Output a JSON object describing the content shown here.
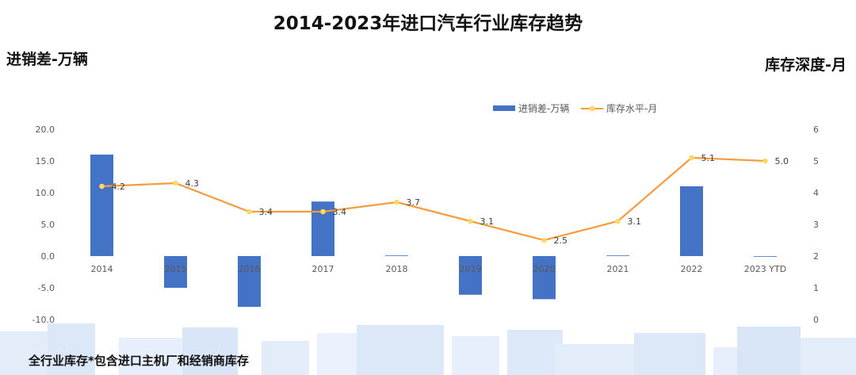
{
  "title": "2014-2023年进口汽车行业库存趋势",
  "left_axis_label": "进销差-万辆",
  "right_axis_label": "库存深度-月",
  "footnote": "全行业库存*包含进口主机厂和经销商库存",
  "colors": {
    "bar": "#4472C4",
    "line": "#F79B3D",
    "marker": "#FFD966",
    "axis_text": "#595959",
    "band": "#DCE8F8"
  },
  "chart_data": {
    "type": "bar",
    "categories": [
      "2014",
      "2015",
      "2016",
      "2017",
      "2018",
      "2019",
      "2020",
      "2021",
      "2022",
      "2023 YTD"
    ],
    "series": [
      {
        "name": "进销差-万辆",
        "type": "bar",
        "axis": "left",
        "values": [
          16.0,
          -5.0,
          -8.0,
          8.6,
          0.1,
          -6.1,
          -6.8,
          0.1,
          11.0,
          0.0
        ]
      },
      {
        "name": "库存水平-月",
        "type": "line",
        "axis": "right",
        "values": [
          4.2,
          4.3,
          3.4,
          3.4,
          3.7,
          3.1,
          2.5,
          3.1,
          5.1,
          5.0
        ],
        "labels": [
          "4.2",
          "4.3",
          "3.4",
          "3.4",
          "3.7",
          "3.1",
          "2.5",
          "3.1",
          "5.1",
          "5.0"
        ]
      }
    ],
    "left_axis": {
      "ylim": [
        -10,
        20
      ],
      "ticks": [
        -10,
        -5,
        0,
        5,
        10,
        15,
        20
      ],
      "tick_labels": [
        "-10.0",
        "-5.0",
        "0.0",
        "5.0",
        "10.0",
        "15.0",
        "20.0"
      ]
    },
    "right_axis": {
      "ylim": [
        0,
        6
      ],
      "ticks": [
        0,
        1,
        2,
        3,
        4,
        5,
        6
      ],
      "tick_labels": [
        "0",
        "1",
        "2",
        "3",
        "4",
        "5",
        "6"
      ]
    },
    "legend_position": "top-right",
    "grid": false
  }
}
